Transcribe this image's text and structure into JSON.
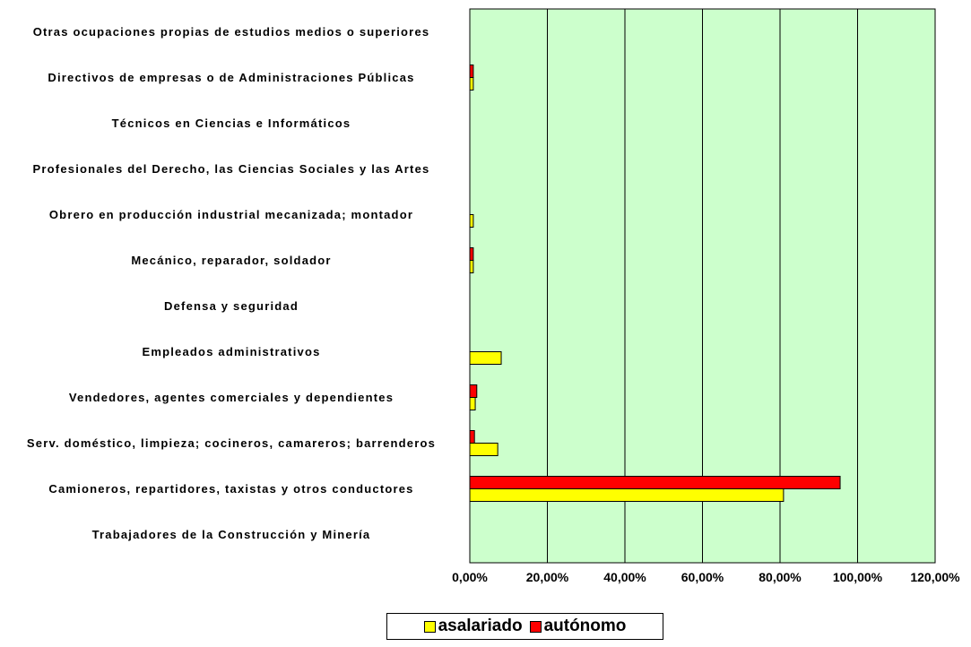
{
  "chart_data": {
    "type": "hbar",
    "categories": [
      "Otras ocupaciones propias de estudios medios o superiores",
      "Directivos de empresas o de Administraciones Públicas",
      "Técnicos en Ciencias e Informáticos",
      "Profesionales del Derecho, las Ciencias Sociales y las Artes",
      "Obrero en producción industrial mecanizada; montador",
      "Mecánico, reparador, soldador",
      "Defensa y seguridad",
      "Empleados administrativos",
      "Vendedores, agentes comerciales y dependientes",
      "Serv. doméstico, limpieza; cocineros, camareros; barrenderos",
      "Camioneros, repartidores, taxistas y otros conductores",
      "Trabajadores de la Construcción y Minería"
    ],
    "series": [
      {
        "name": "asalariado",
        "color": "#ffff00",
        "values": [
          0,
          0.9,
          0,
          0,
          0.9,
          0.9,
          0,
          8.1,
          1.4,
          7.2,
          80.9,
          0
        ]
      },
      {
        "name": "autónomo",
        "color": "#ff0000",
        "values": [
          0,
          0.9,
          0,
          0,
          0,
          0.9,
          0,
          0,
          1.8,
          1.2,
          95.5,
          0
        ]
      }
    ],
    "xlim": [
      0,
      120
    ],
    "xticks": [
      {
        "value": 0,
        "label": "0,00%"
      },
      {
        "value": 20,
        "label": "20,00%"
      },
      {
        "value": 40,
        "label": "40,00%"
      },
      {
        "value": 60,
        "label": "60,00%"
      },
      {
        "value": 80,
        "label": "80,00%"
      },
      {
        "value": 100,
        "label": "100,00%"
      },
      {
        "value": 120,
        "label": "120,00%"
      }
    ],
    "grid": true,
    "plot_background": "#ccffcc",
    "legend": "bottom"
  }
}
